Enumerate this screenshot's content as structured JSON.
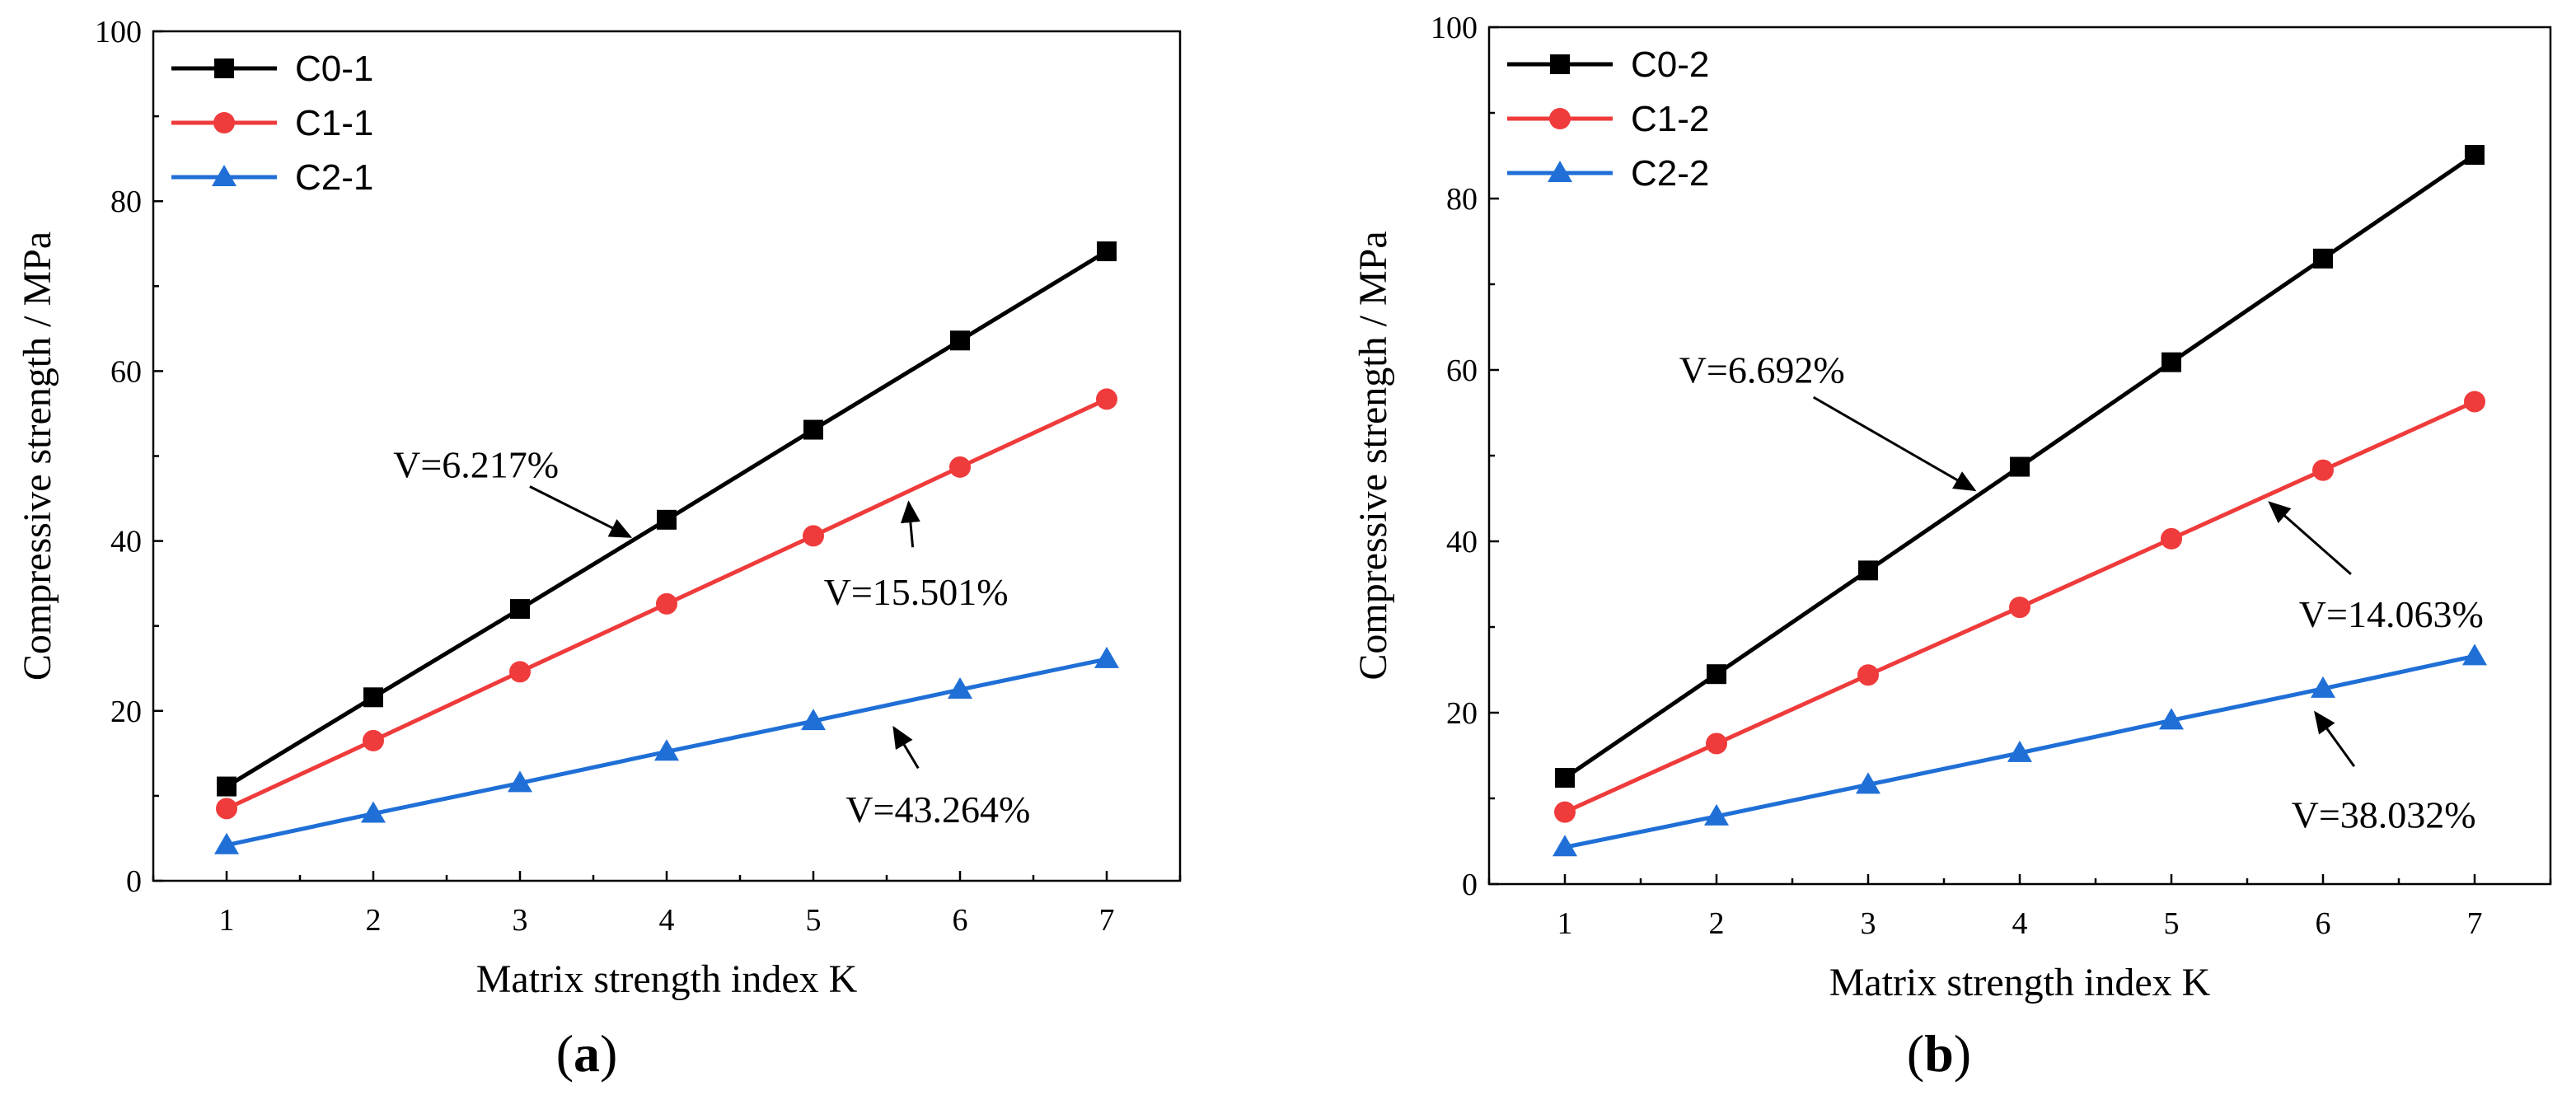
{
  "chart_data": [
    {
      "type": "line",
      "panel_label": "a",
      "title": "",
      "xlabel": "Matrix strength index K",
      "ylabel": "Compressive strength / MPa",
      "x": [
        1,
        2,
        3,
        4,
        5,
        6,
        7
      ],
      "xlim": [
        0.5,
        7.5
      ],
      "ylim": [
        0,
        100
      ],
      "xticks": [
        1,
        2,
        3,
        4,
        5,
        6,
        7
      ],
      "yticks": [
        0,
        20,
        40,
        60,
        80,
        100
      ],
      "legend_position": "top-left",
      "grid": false,
      "series": [
        {
          "name": "C0-1",
          "color": "#000000",
          "marker": "square",
          "values": [
            11.1,
            21.6,
            32.0,
            42.5,
            53.1,
            63.6,
            74.1
          ]
        },
        {
          "name": "C1-1",
          "color": "#ef3b3b",
          "marker": "circle",
          "values": [
            8.5,
            16.5,
            24.6,
            32.6,
            40.6,
            48.7,
            56.7
          ]
        },
        {
          "name": "C2-1",
          "color": "#1f6fd6",
          "marker": "triangle",
          "values": [
            4.2,
            7.9,
            11.5,
            15.2,
            18.8,
            22.5,
            26.1
          ]
        }
      ],
      "annotations": [
        {
          "text": "V=6.217%",
          "text_at": [
            2.7,
            47.5
          ],
          "arrow_to": [
            3.75,
            40.5
          ]
        },
        {
          "text": "V=15.501%",
          "text_at": [
            5.7,
            32.5
          ],
          "arrow_to": [
            5.65,
            44.5
          ]
        },
        {
          "text": "V=43.264%",
          "text_at": [
            5.85,
            6.9
          ],
          "arrow_to": [
            5.55,
            18.0
          ]
        }
      ]
    },
    {
      "type": "line",
      "panel_label": "b",
      "title": "",
      "xlabel": "Matrix strength index K",
      "ylabel": "Compressive strength / MPa",
      "x": [
        1,
        2,
        3,
        4,
        5,
        6,
        7
      ],
      "xlim": [
        0.5,
        7.5
      ],
      "ylim": [
        0,
        100
      ],
      "xticks": [
        1,
        2,
        3,
        4,
        5,
        6,
        7
      ],
      "yticks": [
        0,
        20,
        40,
        60,
        80,
        100
      ],
      "legend_position": "top-left",
      "grid": false,
      "series": [
        {
          "name": "C0-2",
          "color": "#000000",
          "marker": "square",
          "values": [
            12.4,
            24.5,
            36.6,
            48.7,
            60.9,
            73.0,
            85.1
          ]
        },
        {
          "name": "C1-2",
          "color": "#ef3b3b",
          "marker": "circle",
          "values": [
            8.4,
            16.4,
            24.4,
            32.3,
            40.3,
            48.3,
            56.3
          ]
        },
        {
          "name": "C2-2",
          "color": "#1f6fd6",
          "marker": "triangle",
          "values": [
            4.3,
            7.9,
            11.6,
            15.3,
            19.1,
            22.8,
            26.6
          ]
        }
      ],
      "annotations": [
        {
          "text": "V=6.692%",
          "text_at": [
            2.3,
            58.5
          ],
          "arrow_to": [
            3.7,
            46.0
          ]
        },
        {
          "text": "V=14.063%",
          "text_at": [
            6.45,
            30.0
          ],
          "arrow_to": [
            5.65,
            44.5
          ]
        },
        {
          "text": "V=38.032%",
          "text_at": [
            6.4,
            6.6
          ],
          "arrow_to": [
            5.95,
            20.0
          ]
        }
      ]
    }
  ]
}
